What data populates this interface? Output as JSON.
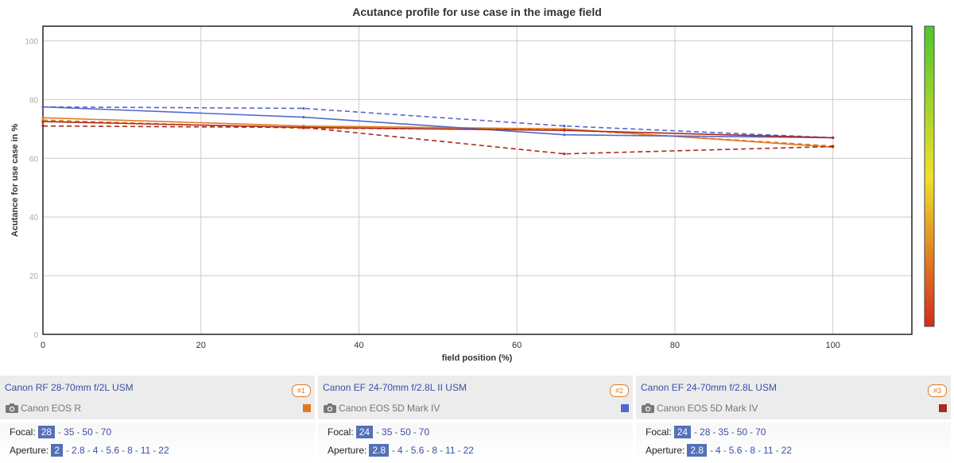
{
  "chart_data": {
    "type": "line",
    "title": "Acutance profile for use case in the image field",
    "xlabel": "field position (%)",
    "ylabel": "Acutance for use case in %",
    "xlim": [
      0,
      110
    ],
    "ylim": [
      0,
      105
    ],
    "x_ticks": [
      "0",
      "20",
      "40",
      "60",
      "80",
      "100"
    ],
    "y_ticks": [
      "0",
      "20",
      "40",
      "60",
      "80",
      "100"
    ],
    "grid": true,
    "legend": "none",
    "colorbar": {
      "from_color": "#d42b1f",
      "mid_color": "#f0e02a",
      "to_color": "#4ec62e"
    },
    "series": [
      {
        "color": "#e07a20",
        "dash": false,
        "x": [
          0,
          33,
          66,
          100
        ],
        "y": [
          73.8,
          71.0,
          70.0,
          63.8
        ]
      },
      {
        "color": "#e07a20",
        "dash": true,
        "x": [
          0,
          33,
          66,
          100
        ],
        "y": [
          73.0,
          70.2,
          69.8,
          64.2
        ]
      },
      {
        "color": "#5566cc",
        "dash": false,
        "x": [
          0,
          33,
          66,
          100
        ],
        "y": [
          77.5,
          74.0,
          68.0,
          67.0
        ]
      },
      {
        "color": "#5566cc",
        "dash": true,
        "x": [
          0,
          33,
          66,
          100
        ],
        "y": [
          77.5,
          77.0,
          71.0,
          67.0
        ]
      },
      {
        "color": "#aa2a1e",
        "dash": false,
        "x": [
          0,
          33,
          66,
          100
        ],
        "y": [
          72.5,
          70.5,
          69.5,
          67.0
        ]
      },
      {
        "color": "#aa2a1e",
        "dash": true,
        "x": [
          0,
          33,
          66,
          100
        ],
        "y": [
          71.0,
          70.5,
          61.5,
          64.0
        ]
      }
    ]
  },
  "lenses": [
    {
      "name": "Canon RF 28-70mm f/2L USM",
      "rank": "#1",
      "camera": "Canon EOS R",
      "color": "#e07a20",
      "focal_label": "Focal:",
      "aperture_label": "Aperture:",
      "focal_options": [
        "28",
        "35",
        "50",
        "70"
      ],
      "focal_selected": 0,
      "aperture_options": [
        "2",
        "2.8",
        "4",
        "5.6",
        "8",
        "11",
        "22"
      ],
      "aperture_selected": 0
    },
    {
      "name": "Canon EF 24-70mm f/2.8L II USM",
      "rank": "#2",
      "camera": "Canon EOS 5D Mark IV",
      "color": "#5566cc",
      "focal_label": "Focal:",
      "aperture_label": "Aperture:",
      "focal_options": [
        "24",
        "35",
        "50",
        "70"
      ],
      "focal_selected": 0,
      "aperture_options": [
        "2.8",
        "4",
        "5.6",
        "8",
        "11",
        "22"
      ],
      "aperture_selected": 0
    },
    {
      "name": "Canon EF 24-70mm f/2.8L USM",
      "rank": "#3",
      "camera": "Canon EOS 5D Mark IV",
      "color": "#aa2a1e",
      "focal_label": "Focal:",
      "aperture_label": "Aperture:",
      "focal_options": [
        "24",
        "28",
        "35",
        "50",
        "70"
      ],
      "focal_selected": 0,
      "aperture_options": [
        "2.8",
        "4",
        "5.6",
        "8",
        "11",
        "22"
      ],
      "aperture_selected": 0
    }
  ]
}
